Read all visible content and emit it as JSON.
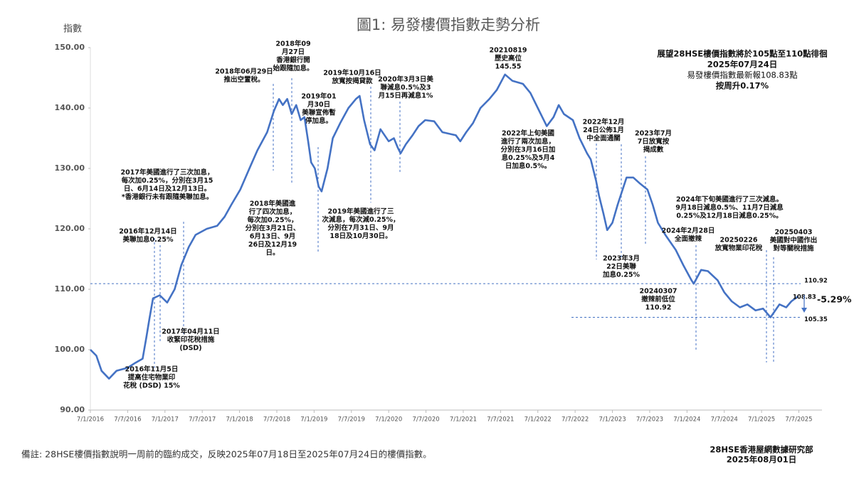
{
  "chart_data": {
    "type": "line",
    "title": "圖1: 易發樓價指數走勢分析",
    "y_label": "指數",
    "color": "#4472c4",
    "x": [
      2016.0,
      2016.08,
      2016.15,
      2016.25,
      2016.35,
      2016.5,
      2016.6,
      2016.7,
      2016.75,
      2016.79,
      2016.84,
      2016.93,
      2017.03,
      2017.13,
      2017.22,
      2017.32,
      2017.41,
      2017.56,
      2017.7,
      2017.8,
      2017.89,
      2018.01,
      2018.15,
      2018.24,
      2018.37,
      2018.46,
      2018.53,
      2018.58,
      2018.64,
      2018.7,
      2018.76,
      2018.82,
      2018.87,
      2018.92,
      2018.96,
      2019.01,
      2019.06,
      2019.1,
      2019.18,
      2019.25,
      2019.35,
      2019.46,
      2019.56,
      2019.61,
      2019.67,
      2019.75,
      2019.81,
      2019.89,
      2020.0,
      2020.07,
      2020.12,
      2020.16,
      2020.23,
      2020.32,
      2020.4,
      2020.49,
      2020.61,
      2020.72,
      2020.9,
      2020.96,
      2021.04,
      2021.13,
      2021.23,
      2021.35,
      2021.45,
      2021.56,
      2021.66,
      2021.8,
      2021.9,
      2022.0,
      2022.12,
      2022.21,
      2022.28,
      2022.35,
      2022.47,
      2022.56,
      2022.66,
      2022.71,
      2022.78,
      2022.82,
      2022.88,
      2022.93,
      2023.0,
      2023.07,
      2023.19,
      2023.28,
      2023.37,
      2023.47,
      2023.54,
      2023.61,
      2023.71,
      2023.85,
      2023.95,
      2024.06,
      2024.09,
      2024.19,
      2024.28,
      2024.41,
      2024.5,
      2024.6,
      2024.71,
      2024.81,
      2024.92,
      2025.02,
      2025.12,
      2025.24,
      2025.33,
      2025.4,
      2025.49
    ],
    "values": [
      100,
      99,
      96.5,
      95.2,
      96.5,
      97,
      97.8,
      98.5,
      102,
      105,
      108.5,
      109,
      107.8,
      110,
      114,
      117,
      119,
      120,
      120.5,
      122,
      124,
      126.5,
      130.5,
      133,
      136,
      139.5,
      141.5,
      140.5,
      141.5,
      139,
      140.5,
      138,
      138.5,
      134.5,
      131,
      130,
      127,
      126.2,
      130,
      135,
      137.5,
      140,
      141.5,
      142,
      138,
      134,
      133,
      136.5,
      134.5,
      135,
      133.5,
      132.5,
      134,
      135.5,
      137,
      138,
      137.8,
      136,
      135.5,
      134.5,
      136,
      137.5,
      140,
      141.5,
      143,
      145.55,
      144.5,
      144,
      142.5,
      140,
      137,
      138.5,
      140.5,
      139,
      138,
      135,
      132.5,
      131.5,
      128,
      125.5,
      122.5,
      119.8,
      121,
      124,
      128.5,
      128.5,
      127.5,
      126.5,
      124,
      121,
      119,
      116.5,
      114,
      111.5,
      110.92,
      113.2,
      113,
      111.5,
      109.5,
      108,
      107,
      107.5,
      106.5,
      106.8,
      105.35,
      107.5,
      107,
      108,
      108.83
    ],
    "xlim": [
      2016.0,
      2025.81
    ],
    "xticks": [
      {
        "value": 2016.0,
        "label": "7/1/2016"
      },
      {
        "value": 2016.5,
        "label": "7/7/2016"
      },
      {
        "value": 2017.0,
        "label": "7/1/2017"
      },
      {
        "value": 2017.5,
        "label": "7/7/2017"
      },
      {
        "value": 2018.0,
        "label": "7/1/2018"
      },
      {
        "value": 2018.5,
        "label": "7/7/2018"
      },
      {
        "value": 2019.0,
        "label": "7/1/2019"
      },
      {
        "value": 2019.5,
        "label": "7/7/2019"
      },
      {
        "value": 2020.0,
        "label": "7/1/2020"
      },
      {
        "value": 2020.5,
        "label": "7/7/2020"
      },
      {
        "value": 2021.0,
        "label": "7/1/2021"
      },
      {
        "value": 2021.5,
        "label": "7/7/2021"
      },
      {
        "value": 2022.0,
        "label": "7/1/2022"
      },
      {
        "value": 2022.5,
        "label": "7/7/2022"
      },
      {
        "value": 2023.0,
        "label": "7/1/2023"
      },
      {
        "value": 2023.5,
        "label": "7/7/2023"
      },
      {
        "value": 2024.0,
        "label": "7/1/2024"
      },
      {
        "value": 2024.5,
        "label": "7/7/2024"
      },
      {
        "value": 2025.0,
        "label": "7/1/2025"
      },
      {
        "value": 2025.5,
        "label": "7/7/2025"
      }
    ],
    "ylim": [
      90,
      150
    ],
    "yticks": [
      {
        "value": 90,
        "label": "90.00"
      },
      {
        "value": 100,
        "label": "100.00"
      },
      {
        "value": 110,
        "label": "110.00"
      },
      {
        "value": 120,
        "label": "120.00"
      },
      {
        "value": 130,
        "label": "130.00"
      },
      {
        "value": 140,
        "label": "140.00"
      },
      {
        "value": 150,
        "label": "150.00"
      }
    ],
    "grid": false,
    "reference_lines": [
      110.92,
      105.35
    ],
    "change_label": "-5.29%",
    "annotations": [
      {
        "lines": [
          "2016年11月5日",
          "提高住宅物業印",
          "花稅 (DSD) 15%"
        ]
      },
      {
        "lines": [
          "2016年12月14日",
          "美聯加息0.25%"
        ]
      },
      {
        "lines": [
          "2017年美國進行了三次加息，",
          "每次加0.25%，分別在3月15",
          "日、6月14日及12月13日。",
          "*香港銀行未有跟隨美聯加息。"
        ]
      },
      {
        "lines": [
          "2017年04月11日",
          "收緊印花稅措施",
          "(DSD)"
        ]
      },
      {
        "lines": [
          "2018年06月29日",
          "推出空置稅。"
        ]
      },
      {
        "lines": [
          "2018年09",
          "月27日",
          "香港銀行開",
          "始跟隨加息。"
        ]
      },
      {
        "lines": [
          "2019年01",
          "月30日",
          "美聯宣佈暫",
          "停加息。"
        ]
      },
      {
        "lines": [
          "2018年美國進",
          "行了四次加息，",
          "每次加0.25%，",
          "分別在3月21日、",
          "6月13日、9月",
          "26日及12月19",
          "日。"
        ]
      },
      {
        "lines": [
          "2019年10月16日",
          "放寬按揭貸款"
        ]
      },
      {
        "lines": [
          "2020年3月3日美",
          "聯減息0.5%及3",
          "月15日再減息1%"
        ]
      },
      {
        "lines": [
          "2019年美國進行了三",
          "次減息，每次減0.25%，",
          "分別在7月31日、9月",
          "18日及10月30日。"
        ]
      },
      {
        "lines": [
          "20210819",
          "歷史高位",
          "145.55"
        ]
      },
      {
        "lines": [
          "2022年上旬美國",
          "進行了兩次加息，",
          "分別在3月16日加",
          "息0.25%及5月4",
          "日加息0.5%。"
        ]
      },
      {
        "lines": [
          "2022年12月",
          "24日公佈1月",
          "中全面通關"
        ]
      },
      {
        "lines": [
          "2023年7月",
          "7日放寬按",
          "揭成數"
        ]
      },
      {
        "lines": [
          "2023年3月",
          "22日美聯",
          "加息0.25%"
        ]
      },
      {
        "lines": [
          "2024年下旬美國進行了三次減息。",
          "9月18日減息0.5%、11月7日減息",
          "0.25%及12月18日減息0.25%。"
        ]
      },
      {
        "lines": [
          "2024年2月28日",
          "全面撤辣"
        ]
      },
      {
        "lines": [
          "20250226",
          "放寬物業印花稅"
        ]
      },
      {
        "lines": [
          "20250403",
          "美國對中國作出",
          "對等關稅措施"
        ]
      },
      {
        "lines": [
          "20240307",
          "撤辣前低位",
          "110.92"
        ]
      }
    ],
    "outlook": [
      "展望28HSE樓價指數將於105點至110點徘徊",
      "2025年07月24日",
      "易發樓價指數最新報108.83點",
      "按周升0.17%"
    ],
    "note": "備註: 28HSE樓價指數說明一周前的臨約成交，反映2025年07月18日至2025年07月24日的樓價指數。",
    "source": [
      "28HSE香港屋網數據研究部",
      "2025年08月01日"
    ]
  }
}
